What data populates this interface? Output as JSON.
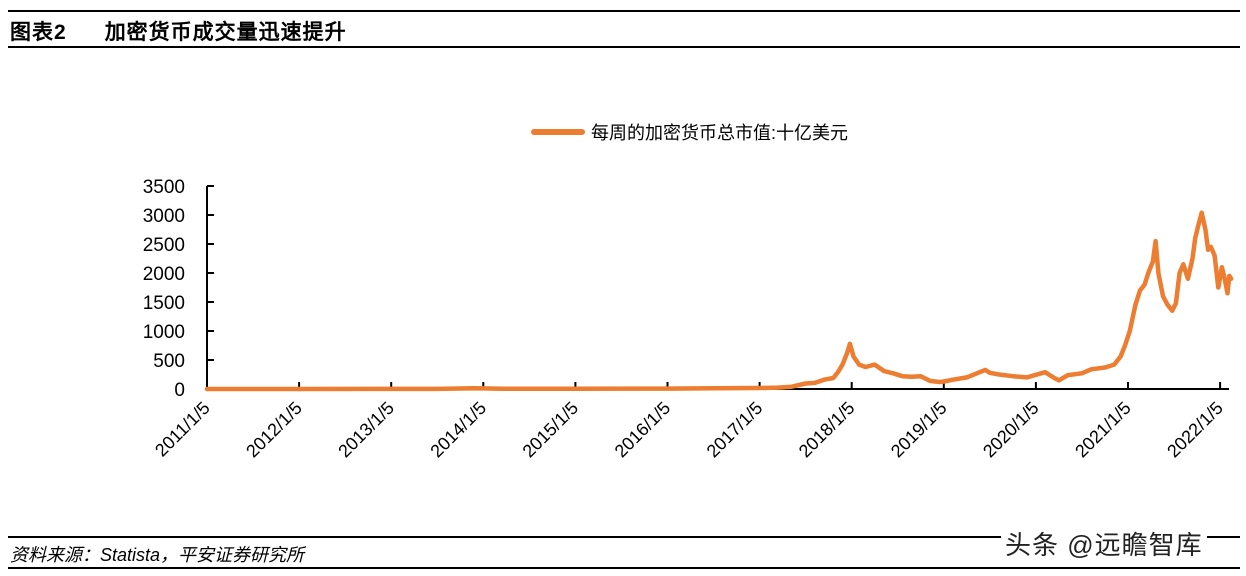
{
  "header": {
    "figure_number": "图表2",
    "title": "加密货币成交量迅速提升"
  },
  "footer": {
    "source": "资料来源：Statista，平安证券研究所",
    "watermark": "头条 @远瞻智库"
  },
  "colors": {
    "series": "#ED7D31",
    "axis": "#000000"
  },
  "chart_data": {
    "type": "line",
    "title": "",
    "xlabel": "",
    "ylabel": "",
    "legend": [
      "每周的加密货币总市值:十亿美元"
    ],
    "legend_position": "top",
    "grid": false,
    "ylim": [
      0,
      3500
    ],
    "yticks": [
      0,
      500,
      1000,
      1500,
      2000,
      2500,
      3000,
      3500
    ],
    "xticks": [
      "2011/1/5",
      "2012/1/5",
      "2013/1/5",
      "2014/1/5",
      "2015/1/5",
      "2016/1/5",
      "2017/1/5",
      "2018/1/5",
      "2019/1/5",
      "2020/1/5",
      "2021/1/5",
      "2022/1/5"
    ],
    "series": [
      {
        "name": "每周的加密货币总市值:十亿美元",
        "x_years": [
          2011.0,
          2012.0,
          2013.0,
          2013.5,
          2013.9,
          2014.0,
          2014.2,
          2015.0,
          2016.0,
          2016.5,
          2017.0,
          2017.2,
          2017.35,
          2017.5,
          2017.6,
          2017.7,
          2017.8,
          2017.85,
          2017.9,
          2017.95,
          2017.98,
          2018.02,
          2018.08,
          2018.15,
          2018.25,
          2018.35,
          2018.45,
          2018.55,
          2018.65,
          2018.75,
          2018.85,
          2018.95,
          2019.0,
          2019.1,
          2019.25,
          2019.45,
          2019.5,
          2019.6,
          2019.75,
          2019.9,
          2020.1,
          2020.2,
          2020.25,
          2020.35,
          2020.5,
          2020.6,
          2020.75,
          2020.85,
          2020.92,
          2020.97,
          2021.02,
          2021.08,
          2021.13,
          2021.18,
          2021.22,
          2021.27,
          2021.3,
          2021.33,
          2021.38,
          2021.43,
          2021.48,
          2021.52,
          2021.56,
          2021.6,
          2021.65,
          2021.7,
          2021.73,
          2021.76,
          2021.8,
          2021.84,
          2021.87,
          2021.9,
          2021.94,
          2021.98,
          2022.02,
          2022.05,
          2022.08,
          2022.1,
          2022.12
        ],
        "values": [
          0,
          0,
          1,
          2,
          12,
          10,
          5,
          4,
          7,
          12,
          18,
          25,
          40,
          95,
          105,
          160,
          190,
          290,
          420,
          620,
          780,
          560,
          420,
          380,
          420,
          310,
          270,
          220,
          210,
          220,
          140,
          120,
          130,
          160,
          200,
          330,
          280,
          250,
          220,
          200,
          290,
          190,
          150,
          240,
          270,
          340,
          370,
          420,
          560,
          760,
          1000,
          1450,
          1700,
          1800,
          2000,
          2200,
          2550,
          2000,
          1600,
          1450,
          1350,
          1480,
          2000,
          2150,
          1900,
          2250,
          2600,
          2800,
          3040,
          2750,
          2400,
          2450,
          2300,
          1750,
          2100,
          1900,
          1650,
          1950,
          1900
        ]
      }
    ]
  }
}
